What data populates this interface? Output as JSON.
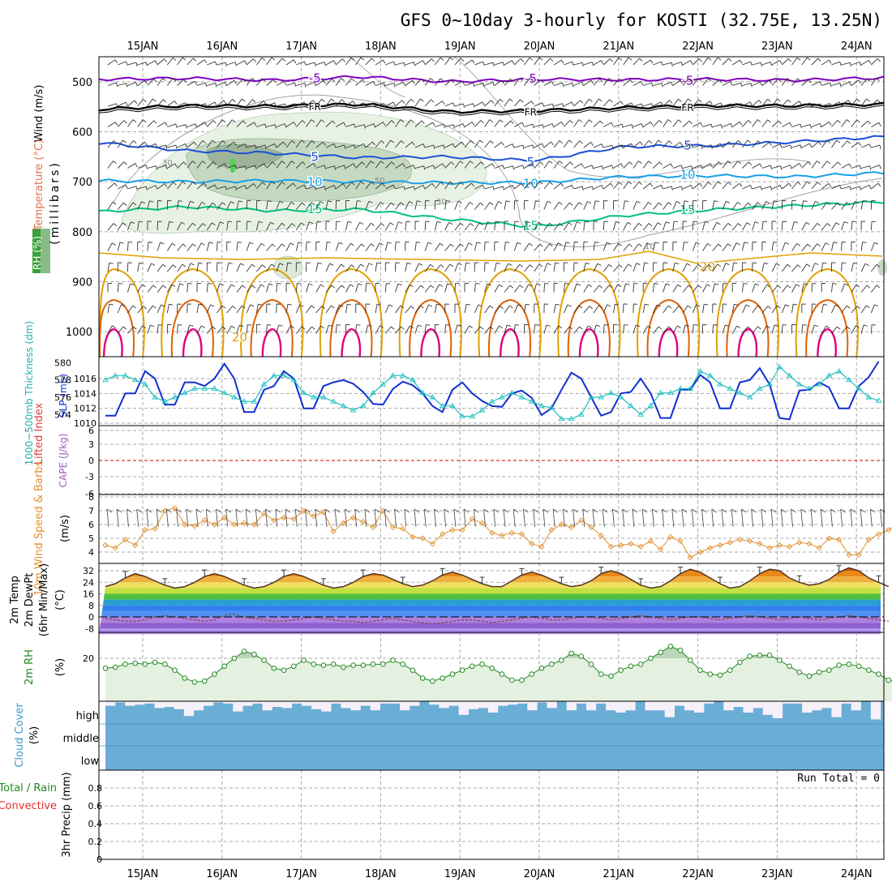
{
  "title": "GFS 0~10day 3-hourly for KOSTI (32.75E, 13.25N)",
  "dates": [
    "15JAN",
    "16JAN",
    "17JAN",
    "18JAN",
    "19JAN",
    "20JAN",
    "21JAN",
    "22JAN",
    "23JAN",
    "24JAN"
  ],
  "colors": {
    "grid": "#a8a8a8",
    "purple_isotherm": "#8000c0",
    "black_isotherm": "#000000",
    "blue_isotherm": "#1a4fd6",
    "lightblue_isotherm": "#1aa0e6",
    "green_isotherm": "#00c080",
    "orange_isotherm": "#e0a000",
    "darkorange_isotherm": "#e06000",
    "magenta_isotherm": "#e0007f",
    "slp": "#1030d0",
    "thickness": "#20c0c0",
    "lifted_zero": "#d00000",
    "wind": "#e09030",
    "rh": "#228822",
    "cloud": "#6aaed6"
  },
  "chart_data": [
    {
      "panel": "upper_air",
      "type": "contour",
      "ylabels": {
        "wind": "Wind (m/s)",
        "temperature": "Temperature (°C)",
        "rh": "RH (%)",
        "axis": "(millibars)"
      },
      "y_ticks": [
        500,
        600,
        700,
        800,
        900,
        1000
      ],
      "ylim": [
        1050,
        450
      ],
      "contour_labels": {
        "minus5": "-5",
        "fr": "FR",
        "five": "5",
        "ten": "10",
        "fifteen": "15",
        "twenty": "20",
        "rh30": "30",
        "rh50": "50",
        "rh10": "10"
      },
      "isotherms_mb": [
        {
          "name": "-5",
          "pressure": [
            495,
            493,
            497,
            490,
            500,
            495,
            496,
            495,
            497,
            492
          ]
        },
        {
          "name": "FR",
          "pressure": [
            555,
            548,
            549,
            545,
            560,
            558,
            552,
            548,
            548,
            545
          ]
        },
        {
          "name": "5",
          "pressure": [
            622,
            638,
            643,
            652,
            650,
            658,
            630,
            628,
            620,
            610
          ]
        },
        {
          "name": "10",
          "pressure": [
            698,
            700,
            698,
            700,
            702,
            702,
            690,
            688,
            690,
            682
          ]
        },
        {
          "name": "15",
          "pressure": [
            760,
            750,
            758,
            755,
            775,
            790,
            768,
            756,
            748,
            740
          ]
        }
      ]
    },
    {
      "panel": "slp_thickness",
      "type": "line",
      "ylabels": {
        "thickness": "1000~500mb Thickness (dm)",
        "slp": "SLP (mb)"
      },
      "thickness_ticks": [
        574,
        576,
        578,
        580
      ],
      "slp_ticks": [
        1010,
        1012,
        1014,
        1016
      ],
      "series": [
        {
          "name": "SLP (mb)",
          "axis": "slp",
          "values": [
            1011,
            1011,
            1014,
            1014,
            1017,
            1016,
            1012.5,
            1012.5,
            1015.5,
            1015.5,
            1015,
            1016,
            1018,
            1016,
            1011.5,
            1011.5,
            1014.5,
            1015,
            1017,
            1016,
            1012,
            1012,
            1015,
            1015.5,
            1015.8,
            1015.3,
            1014.2,
            1012.6,
            1012.5,
            1014.6,
            1015.6,
            1015.1,
            1014,
            1012.3,
            1011.5,
            1014.5,
            1015.5,
            1014,
            1013,
            1012.3,
            1012.2,
            1014,
            1014.4,
            1013.4,
            1011.1,
            1012,
            1014.5,
            1016.8,
            1016,
            1013.5,
            1011,
            1011.5,
            1014,
            1014.2,
            1016,
            1014,
            1010.7,
            1010.7,
            1014.5,
            1014.5,
            1016.5,
            1015.5,
            1012,
            1012,
            1015.5,
            1015.8,
            1017.4,
            1015.2,
            1010.7,
            1010.5,
            1014.4,
            1014.5,
            1015.5,
            1014.8,
            1012,
            1012,
            1015,
            1016.2,
            1018.3
          ]
        },
        {
          "name": "Thickness (dm)",
          "axis": "thickness",
          "values": [
            578,
            578.5,
            578.5,
            578,
            577.5,
            576,
            575.5,
            576,
            576.5,
            577,
            577,
            577,
            576.5,
            576,
            575.5,
            575.5,
            577.5,
            578.5,
            578.5,
            578,
            576.5,
            576,
            576,
            575.5,
            575,
            574.5,
            575,
            576.5,
            577.5,
            578.5,
            578.5,
            578,
            576.5,
            576,
            575,
            575,
            573.8,
            573.8,
            574.5,
            575.5,
            576,
            576.5,
            576,
            575.5,
            575,
            574.8,
            573.5,
            573.5,
            574,
            576,
            576,
            576.5,
            576,
            575,
            574,
            575,
            576.5,
            576.5,
            577,
            577,
            579,
            578.5,
            577.5,
            577,
            576.5,
            576,
            577,
            577.5,
            579.5,
            578.5,
            577.5,
            577,
            577.5,
            578.5,
            579,
            578,
            577,
            576,
            575.6
          ]
        }
      ]
    },
    {
      "panel": "lifted_cape",
      "type": "line",
      "ylabels": {
        "lifted": "Lifted Index",
        "cape": "CAPE (J/kg)"
      },
      "y_ticks": [
        "6",
        "3",
        "0",
        "-3",
        "-6"
      ],
      "series": []
    },
    {
      "panel": "wind10m",
      "type": "line",
      "ylabels": {
        "main": "10m Wind Speed & Barbs",
        "unit": "(m/s)"
      },
      "y_ticks": [
        4,
        5,
        6,
        7,
        8
      ],
      "ylim": [
        3.5,
        8
      ],
      "series": [
        {
          "name": "10m Wind Speed",
          "values": [
            4.5,
            4.3,
            4.9,
            4.5,
            5.6,
            5.7,
            7,
            7.2,
            6,
            5.9,
            6.3,
            6,
            6.5,
            6,
            6.1,
            6,
            6.8,
            6.3,
            6.5,
            6.4,
            7,
            6.6,
            6.9,
            5.5,
            6.1,
            6.5,
            6.2,
            5.8,
            7,
            5.8,
            5.7,
            5.1,
            5,
            4.6,
            5.3,
            5.6,
            5.6,
            6.4,
            6.1,
            5.4,
            5.2,
            5.4,
            5.3,
            4.6,
            4.4,
            5.6,
            6,
            5.8,
            6.3,
            5.8,
            5.2,
            4.4,
            4.5,
            4.6,
            4.4,
            4.8,
            4.2,
            5.1,
            4.8,
            3.6,
            4,
            4.3,
            4.5,
            4.7,
            4.9,
            4.8,
            4.6,
            4.3,
            4.5,
            4.4,
            4.7,
            4.6,
            4.3,
            5,
            4.9,
            3.8,
            3.8,
            4.9,
            5.3,
            5.6,
            6.1,
            5.6,
            7,
            6.8,
            7.1,
            6.2,
            6.7,
            7.2,
            7.3,
            7.5,
            7.6,
            7.6,
            7.5,
            7.8
          ]
        }
      ]
    },
    {
      "panel": "temp2m",
      "type": "area",
      "ylabels": {
        "temp": "2m Temp",
        "dewpt": "2m DewPt",
        "minmax": "(6hr Min/Max)",
        "unit": "(°C)"
      },
      "y_ticks": [
        32,
        24,
        16,
        8,
        0,
        -8
      ],
      "series": [
        {
          "name": "2m Temp",
          "values": [
            21,
            23,
            27,
            30,
            28,
            25,
            22,
            20,
            21,
            24,
            28,
            30,
            28,
            25,
            22,
            20,
            21,
            24,
            28,
            30,
            28,
            25,
            22,
            20,
            21,
            24,
            28,
            30,
            29,
            26,
            23,
            21,
            22,
            25,
            29,
            31,
            29,
            26,
            23,
            21,
            21,
            25,
            29,
            31,
            29,
            26,
            23,
            21,
            22,
            25,
            30,
            32,
            30,
            26,
            22,
            20,
            21,
            25,
            30,
            33,
            31,
            27,
            23,
            20,
            21,
            25,
            30,
            33,
            32,
            27,
            24,
            22,
            23,
            26,
            31,
            34,
            32,
            27,
            24,
            21
          ]
        },
        {
          "name": "2m DewPt",
          "values": [
            -1,
            -2,
            -3,
            -3,
            -2,
            0,
            1,
            0,
            -1,
            -2,
            -3,
            -2,
            1,
            2,
            0,
            -1,
            -2,
            -3,
            -3,
            -2,
            -1,
            0,
            -1,
            -2,
            -3,
            -3,
            -4,
            -3,
            -2,
            -1,
            -2,
            -3,
            -4,
            -5,
            -4,
            -3,
            -2,
            -2,
            -3,
            -4,
            -3,
            -2,
            -1,
            0,
            -1,
            -2,
            -2,
            -1,
            0,
            0,
            -1,
            -2,
            -1,
            0,
            1,
            0,
            -1,
            -2,
            -1,
            0,
            0,
            -1,
            -2,
            -1,
            0,
            1,
            0,
            -1,
            -2,
            -1,
            0,
            -1,
            -2,
            -1,
            0,
            1,
            0,
            -1,
            -2,
            -3
          ]
        }
      ]
    },
    {
      "panel": "rh2m",
      "type": "area",
      "ylabels": {
        "main": "2m RH",
        "unit": "(%)"
      },
      "y_ticks": [
        20
      ],
      "series": [
        {
          "name": "2m RH",
          "values": [
            15,
            15.5,
            17,
            17.5,
            17,
            18,
            17,
            14,
            10,
            8,
            8.5,
            12,
            16,
            20,
            23.5,
            22,
            19,
            15,
            14,
            16,
            19,
            17,
            16.5,
            17,
            15.5,
            16.5,
            16.5,
            17,
            17,
            19,
            17,
            14,
            10,
            8.5,
            10,
            12,
            14,
            16,
            17,
            15,
            12,
            9,
            9,
            12,
            15,
            17,
            19,
            22.5,
            21,
            17,
            12,
            11,
            14,
            16,
            17,
            20,
            23,
            26,
            24,
            19,
            14,
            12,
            11.5,
            14,
            18,
            21,
            21.5,
            21.5,
            19,
            16,
            13,
            11,
            13,
            14,
            16.5,
            17,
            16,
            14,
            12,
            9,
            8.5,
            11,
            15,
            22,
            24,
            19
          ]
        }
      ]
    },
    {
      "panel": "cloud",
      "type": "bar",
      "ylabels": {
        "main": "Cloud Cover",
        "unit": "(%)"
      },
      "levels": [
        "high",
        "middle",
        "low"
      ],
      "high_cloud": [
        80,
        95,
        80,
        85,
        90,
        70,
        75,
        65,
        35,
        60,
        80,
        95,
        90,
        55,
        80,
        90,
        60,
        75,
        70,
        90,
        80,
        65,
        55,
        90,
        70,
        60,
        80,
        60,
        90,
        90,
        60,
        80,
        100,
        85,
        70,
        80,
        40,
        65,
        70,
        50,
        80,
        85,
        90,
        60,
        95,
        70,
        100,
        60,
        90,
        60,
        90,
        60,
        50,
        60,
        100,
        60,
        60,
        30,
        80,
        60,
        50,
        90,
        100,
        60,
        75,
        50,
        70,
        40,
        25,
        90,
        90,
        50,
        60,
        70,
        30,
        90,
        60,
        100,
        20,
        100,
        80
      ]
    },
    {
      "panel": "precip",
      "type": "bar",
      "ylabels": {
        "precip": "3hr Precip (mm)",
        "total": "Total / Rain",
        "convective": "Convective"
      },
      "y_ticks": [
        "0",
        "0.2",
        "0.4",
        "0.6",
        "0.8"
      ],
      "run_total": "Run Total = 0",
      "values": []
    }
  ]
}
